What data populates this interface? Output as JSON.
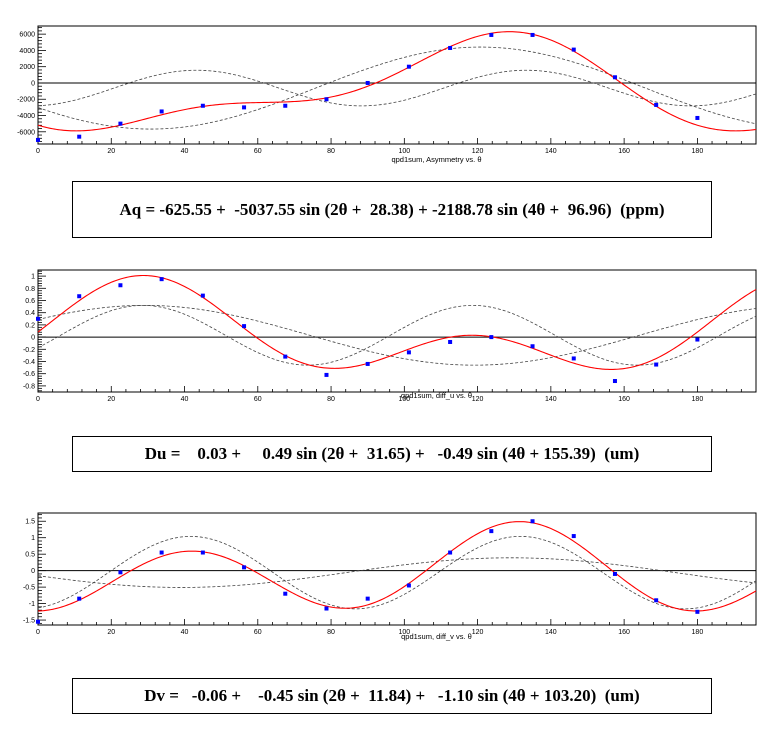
{
  "chart_data": [
    {
      "type": "scatter",
      "title": "",
      "xlabel": "qpd1sum, Asymmetry vs.  θ",
      "ylabel": "",
      "xlim": [
        0,
        196
      ],
      "ylim": [
        -7500,
        7000
      ],
      "xticks": [
        0,
        20,
        40,
        60,
        80,
        100,
        120,
        140,
        160,
        180
      ],
      "yticks": [
        -6000,
        -4000,
        -2000,
        0,
        2000,
        4000,
        6000
      ],
      "grid": false,
      "points": {
        "x": [
          0,
          11.25,
          22.5,
          33.75,
          45,
          56.25,
          67.5,
          78.75,
          90,
          101.25,
          112.5,
          123.75,
          135,
          146.25,
          157.5,
          168.75,
          180
        ],
        "y": [
          -7000,
          -6600,
          -5000,
          -3500,
          -2800,
          -3000,
          -2800,
          -2000,
          0,
          2000,
          4300,
          5900,
          5900,
          4100,
          700,
          -2700,
          -4300
        ]
      },
      "fit": {
        "name": "fit",
        "offset": -625.55,
        "a2": -5037.55,
        "p2": 28.38,
        "a4": -2188.78,
        "p4": 96.96
      },
      "formula": "Aq = -625.55 +  -5037.55 sin (2θ +  28.38) + -2188.78 sin (4θ +  96.96)  (ppm)"
    },
    {
      "type": "scatter",
      "title": "",
      "xlabel": "qpd1sum,  diff_u vs. θ",
      "ylabel": "",
      "xlim": [
        0,
        196
      ],
      "ylim": [
        -0.9,
        1.1
      ],
      "xticks": [
        0,
        20,
        40,
        60,
        80,
        100,
        120,
        140,
        160,
        180
      ],
      "yticks": [
        -0.8,
        -0.6,
        -0.4,
        -0.2,
        0,
        0.2,
        0.4,
        0.6,
        0.8,
        1
      ],
      "grid": false,
      "points": {
        "x": [
          0,
          11.25,
          22.5,
          33.75,
          45,
          56.25,
          67.5,
          78.75,
          90,
          101.25,
          112.5,
          123.75,
          135,
          146.25,
          157.5,
          168.75,
          180
        ],
        "y": [
          0.3,
          0.67,
          0.85,
          0.95,
          0.68,
          0.18,
          -0.32,
          -0.62,
          -0.44,
          -0.25,
          -0.08,
          0.0,
          -0.15,
          -0.35,
          -0.72,
          -0.45,
          -0.04
        ]
      },
      "fit": {
        "name": "fit",
        "offset": 0.03,
        "a2": 0.49,
        "p2": 31.65,
        "a4": -0.49,
        "p4": 155.39
      },
      "formula": "Du =    0.03 +     0.49 sin (2θ +  31.65) +   -0.49 sin (4θ + 155.39)  (um)"
    },
    {
      "type": "scatter",
      "title": "",
      "xlabel": "qpd1sum,  diff_v vs. θ",
      "ylabel": "",
      "xlim": [
        0,
        196
      ],
      "ylim": [
        -1.65,
        1.75
      ],
      "xticks": [
        0,
        20,
        40,
        60,
        80,
        100,
        120,
        140,
        160,
        180
      ],
      "yticks": [
        -1.5,
        -1,
        -0.5,
        0,
        0.5,
        1,
        1.5
      ],
      "grid": false,
      "points": {
        "x": [
          0,
          11.25,
          22.5,
          33.75,
          45,
          56.25,
          67.5,
          78.75,
          90,
          101.25,
          112.5,
          123.75,
          135,
          146.25,
          157.5,
          168.75,
          180
        ],
        "y": [
          -1.55,
          -0.85,
          -0.05,
          0.55,
          0.55,
          0.1,
          -0.7,
          -1.15,
          -0.85,
          -0.45,
          0.55,
          1.2,
          1.5,
          1.05,
          -0.1,
          -0.9,
          -1.25
        ]
      },
      "fit": {
        "name": "fit",
        "offset": -0.06,
        "a2": -0.45,
        "p2": 11.84,
        "a4": -1.1,
        "p4": 103.2
      },
      "formula": "Dv =   -0.06 +    -0.45 sin (2θ +  11.84) +   -1.10 sin (4θ + 103.20)  (um)"
    }
  ],
  "colors": {
    "fit_line": "#ff0000",
    "marker": "#0000ff",
    "component_line": "#444444",
    "zero_line": "#000000"
  }
}
